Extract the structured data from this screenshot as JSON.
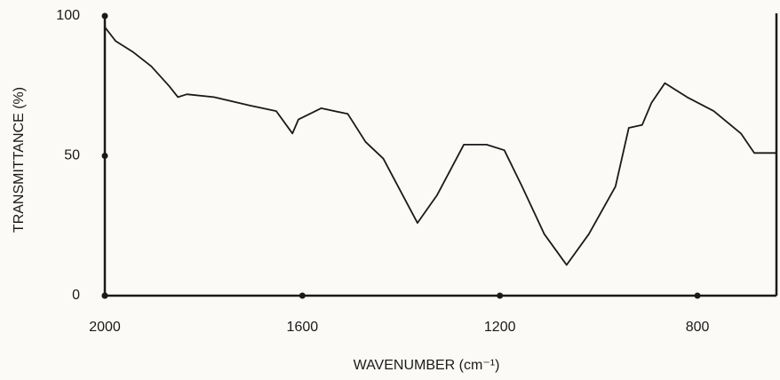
{
  "chart_data": {
    "type": "line",
    "x_label": "WAVENUMBER (cm⁻¹)",
    "y_label": "TRANSMITTANCE (%)",
    "x": [
      2000,
      1978,
      1942,
      1906,
      1870,
      1852,
      1834,
      1779,
      1707,
      1653,
      1620,
      1608,
      1562,
      1508,
      1472,
      1436,
      1400,
      1367,
      1327,
      1273,
      1227,
      1191,
      1155,
      1110,
      1065,
      1020,
      966,
      939,
      912,
      893,
      866,
      821,
      767,
      712,
      685,
      640
    ],
    "series": [
      {
        "color": "#1a1a1a",
        "values": [
          96,
          91,
          87,
          82,
          75,
          71,
          72,
          71,
          68,
          66,
          58,
          63,
          67,
          65,
          55,
          49,
          37,
          26,
          36,
          54,
          54,
          52,
          39,
          22,
          11,
          22,
          39,
          60,
          61,
          69,
          76,
          71,
          66,
          58,
          51,
          51
        ]
      }
    ],
    "xlim": [
      2000,
      640
    ],
    "ylim": [
      0,
      100
    ],
    "xticks": [
      2000,
      1600,
      1200,
      800
    ],
    "yticks": [
      0,
      50,
      100
    ]
  }
}
